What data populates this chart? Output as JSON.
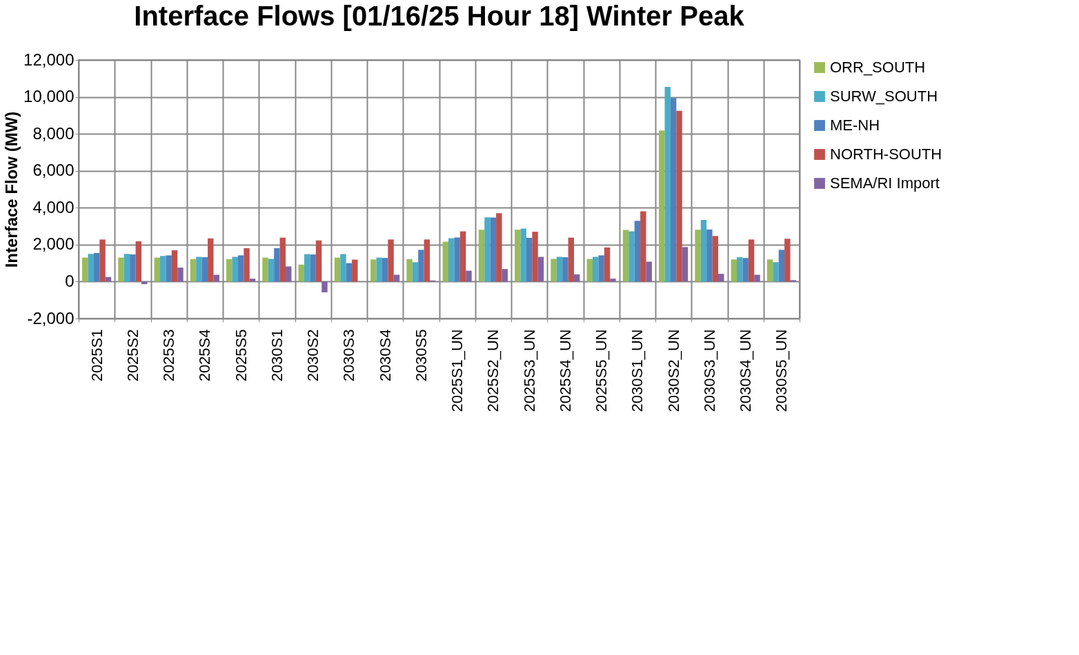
{
  "chart_data": {
    "type": "bar",
    "title": "Interface Flows [01/16/25 Hour 18]  Winter Peak",
    "ylabel": "Interface Flow (MW)",
    "categories": [
      "2025S1",
      "2025S2",
      "2025S3",
      "2025S4",
      "2025S5",
      "2030S1",
      "2030S2",
      "2030S3",
      "2030S4",
      "2030S5",
      "2025S1_UN",
      "2025S2_UN",
      "2025S3_UN",
      "2025S4_UN",
      "2025S5_UN",
      "2030S1_UN",
      "2030S2_UN",
      "2030S3_UN",
      "2030S4_UN",
      "2030S5_UN"
    ],
    "series": [
      {
        "name": "ORR_SOUTH",
        "color": "#9bbb59",
        "values": [
          1300,
          1300,
          1300,
          1220,
          1220,
          1300,
          920,
          1300,
          1200,
          1220,
          2160,
          2810,
          2810,
          1230,
          1230,
          2800,
          8180,
          2810,
          1200,
          1200
        ]
      },
      {
        "name": "SURW_SOUTH",
        "color": "#4bacc6",
        "values": [
          1500,
          1500,
          1390,
          1340,
          1340,
          1230,
          1490,
          1490,
          1300,
          1050,
          2350,
          3480,
          2870,
          1340,
          1340,
          2720,
          10540,
          3340,
          1320,
          1050
        ]
      },
      {
        "name": "ME-NH",
        "color": "#4f81bd",
        "values": [
          1550,
          1470,
          1420,
          1320,
          1420,
          1810,
          1470,
          1000,
          1280,
          1720,
          2390,
          3470,
          2370,
          1320,
          1420,
          3290,
          9940,
          2820,
          1280,
          1720
        ]
      },
      {
        "name": "NORTH-SOUTH",
        "color": "#c0504d",
        "values": [
          2280,
          2180,
          1700,
          2340,
          1810,
          2380,
          2230,
          1190,
          2280,
          2280,
          2720,
          3700,
          2700,
          2380,
          1850,
          3810,
          9250,
          2470,
          2280,
          2320
        ]
      },
      {
        "name": "SEMA/RI Import",
        "color": "#8064a2",
        "values": [
          250,
          -140,
          760,
          370,
          160,
          820,
          -580,
          null,
          370,
          60,
          590,
          680,
          1340,
          390,
          160,
          1080,
          1870,
          420,
          370,
          80
        ]
      }
    ],
    "ylim": [
      -2000,
      12000
    ],
    "yticks": [
      {
        "value": -2000,
        "label": "-2,000"
      },
      0,
      {
        "value": 2000,
        "label": "2,000"
      },
      {
        "value": 4000,
        "label": "4,000"
      },
      {
        "value": 6000,
        "label": "6,000"
      },
      {
        "value": 8000,
        "label": "8,000"
      },
      {
        "value": 10000,
        "label": "10,000"
      },
      {
        "value": 12000,
        "label": "12,000"
      }
    ],
    "grid": true,
    "legend": "right"
  }
}
